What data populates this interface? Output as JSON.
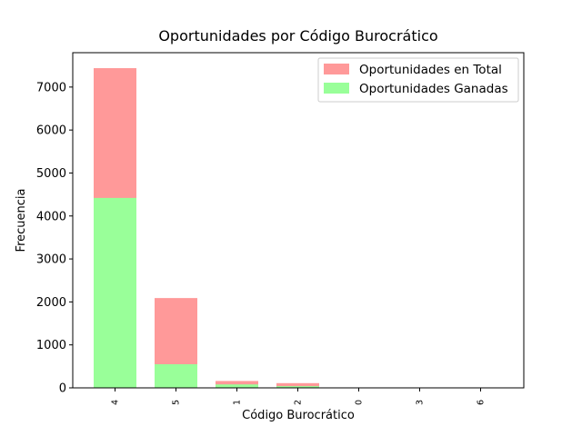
{
  "chart_data": {
    "type": "bar",
    "stacked": "overlay",
    "title": "Oportunidades por Código Burocrático",
    "xlabel": "Código Burocrático",
    "ylabel": "Frecuencia",
    "categories": [
      "4",
      "5",
      "1",
      "2",
      "0",
      "3",
      "6"
    ],
    "series": [
      {
        "name": "Oportunidades en Total",
        "values": [
          7440,
          2090,
          160,
          110,
          0,
          0,
          0
        ],
        "color": "#ff9999"
      },
      {
        "name": "Oportunidades Ganadas",
        "values": [
          4420,
          550,
          80,
          40,
          0,
          0,
          0
        ],
        "color": "#99ff99"
      }
    ],
    "ylim": [
      0,
      7800
    ],
    "yticks": [
      0,
      1000,
      2000,
      3000,
      4000,
      5000,
      6000,
      7000
    ],
    "grid": false,
    "legend_position": "top-right"
  }
}
